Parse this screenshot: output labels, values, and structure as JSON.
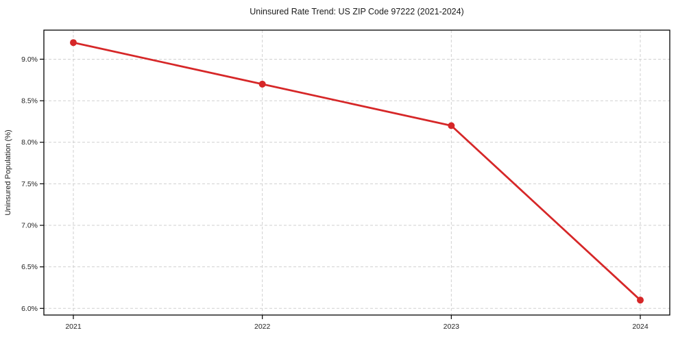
{
  "chart_data": {
    "type": "line",
    "title": "Uninsured Rate Trend: US ZIP Code 97222 (2021-2024)",
    "xlabel": "",
    "ylabel": "Uninsured Population (%)",
    "categories": [
      "2021",
      "2022",
      "2023",
      "2024"
    ],
    "values": [
      9.2,
      8.7,
      8.2,
      6.1
    ],
    "series_name": "uninsured-rate",
    "ylim": [
      5.92,
      9.35
    ],
    "yticks": [
      6.0,
      6.5,
      7.0,
      7.5,
      8.0,
      8.5,
      9.0
    ],
    "ytick_labels": [
      "6.0%",
      "6.5%",
      "7.0%",
      "7.5%",
      "8.0%",
      "8.5%",
      "9.0%"
    ],
    "line_color": "#d62728",
    "marker": "circle",
    "marker_radius": 5,
    "line_width": 2.8,
    "grid": true,
    "grid_style": "dashed",
    "legend": "none"
  }
}
